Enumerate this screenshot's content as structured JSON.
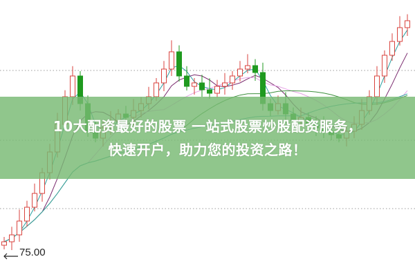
{
  "banner": {
    "line1": "10大配资最好的股票 一站式股票炒股配资服务，",
    "line2": "快速开户，助力您的投资之路！"
  },
  "chart_data": {
    "type": "candlestick",
    "ylim": [
      73.3,
      93.35
    ],
    "grid": "horizontal dotted",
    "price_marker": {
      "label": "75.00",
      "value": 75.0
    },
    "colors": {
      "up": "#d9423c",
      "down": "#1f9a1f",
      "ma": [
        "#2a9fa0",
        "#7a2a6e",
        "#e6a3e6",
        "#3d8f3d",
        "#3aa7a7"
      ]
    },
    "closes": [
      75.85,
      76.35,
      77.35,
      78.35,
      79.35,
      80.85,
      82.35,
      84.35,
      86.35,
      87.85,
      85.85,
      83.85,
      83.35,
      84.1,
      84.6,
      85.1,
      84.85,
      85.35,
      85.85,
      86.35,
      87.35,
      88.35,
      89.6,
      87.85,
      87.1,
      87.35,
      86.85,
      86.6,
      87.1,
      87.35,
      87.85,
      88.35,
      88.6,
      88.1,
      85.85,
      85.35,
      85.85,
      85.1,
      84.6,
      84.85,
      84.35,
      84.1,
      83.85,
      83.6,
      83.35,
      83.85,
      84.35,
      85.35,
      86.35,
      87.85,
      89.35,
      90.35,
      91.35,
      91.85
    ],
    "first_open": 75.6
  }
}
